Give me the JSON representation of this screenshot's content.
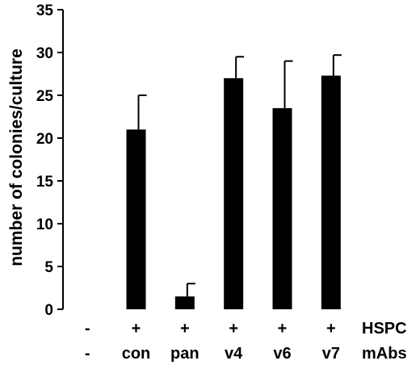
{
  "chart_data": {
    "type": "bar",
    "title": "",
    "ylabel": "number of colonies/culture",
    "ylim": [
      0,
      35
    ],
    "yticks": [
      0,
      5,
      10,
      15,
      20,
      25,
      30,
      35
    ],
    "grid": false,
    "bar_color": "#000000",
    "categories": [
      {
        "hspc": "-",
        "mab": "-"
      },
      {
        "hspc": "+",
        "mab": "con"
      },
      {
        "hspc": "+",
        "mab": "pan"
      },
      {
        "hspc": "+",
        "mab": "v4"
      },
      {
        "hspc": "+",
        "mab": "v6"
      },
      {
        "hspc": "+",
        "mab": "v7"
      }
    ],
    "values": [
      0,
      21.0,
      1.5,
      27.0,
      23.5,
      27.3
    ],
    "errors": [
      0,
      4.0,
      1.5,
      2.5,
      5.5,
      2.4
    ],
    "row_labels": {
      "hspc": "HSPC",
      "mab": "mAbs"
    }
  }
}
